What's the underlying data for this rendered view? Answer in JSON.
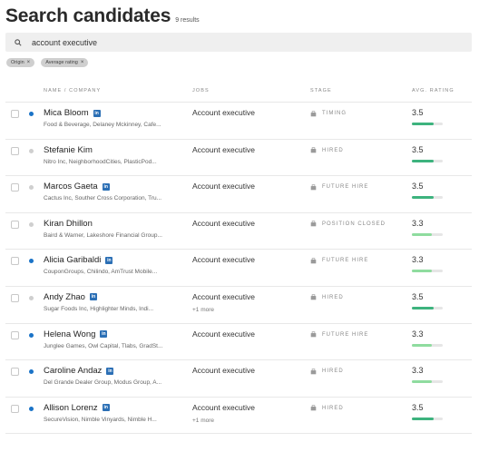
{
  "header": {
    "title": "Search candidates",
    "result_count": "9 results"
  },
  "search": {
    "query": "account executive",
    "icon": "search-icon"
  },
  "filters": [
    {
      "label": "Origin"
    },
    {
      "label": "Average rating"
    }
  ],
  "table": {
    "columns": {
      "name": "NAME / COMPANY",
      "jobs": "JOBS",
      "stage": "STAGE",
      "rating": "AVG. RATING"
    }
  },
  "colors": {
    "active_dot": "#1a73c7",
    "inactive_dot": "#cfcfcf",
    "rating_dark": "#3db37e",
    "rating_light": "#8fdc9f",
    "linkedin": "#2b6fb5"
  },
  "candidates": [
    {
      "name": "Mica Bloom",
      "linkedin": true,
      "active": true,
      "company": "Food & Beverage, Delaney Mckinney, Cafe...",
      "job": "Account executive",
      "more": "",
      "stage": "TIMING",
      "rating": "3.5",
      "rating_value": 3.5
    },
    {
      "name": "Stefanie Kim",
      "linkedin": false,
      "active": false,
      "company": "Nitro Inc, NeighborhoodCities, PlasticPod...",
      "job": "Account executive",
      "more": "",
      "stage": "HIRED",
      "rating": "3.5",
      "rating_value": 3.5
    },
    {
      "name": "Marcos Gaeta",
      "linkedin": true,
      "active": false,
      "company": "Cactus Inc, Souther Cross Corporation, Tru...",
      "job": "Account executive",
      "more": "",
      "stage": "FUTURE HIRE",
      "rating": "3.5",
      "rating_value": 3.5
    },
    {
      "name": "Kiran Dhillon",
      "linkedin": false,
      "active": false,
      "company": "Baird & Warner, Lakeshore Financial Group...",
      "job": "Account executive",
      "more": "",
      "stage": "POSITION CLOSED",
      "rating": "3.3",
      "rating_value": 3.3
    },
    {
      "name": "Alicia Garibaldi",
      "linkedin": true,
      "active": true,
      "company": "CouponGroups, Chilindo, AmTrust Mobile...",
      "job": "Account executive",
      "more": "",
      "stage": "FUTURE HIRE",
      "rating": "3.3",
      "rating_value": 3.3
    },
    {
      "name": "Andy Zhao",
      "linkedin": true,
      "active": false,
      "company": "Sugar Foods Inc, Highlighter Minds, Indi...",
      "job": "Account executive",
      "more": "+1 more",
      "stage": "HIRED",
      "rating": "3.5",
      "rating_value": 3.5
    },
    {
      "name": "Helena Wong",
      "linkedin": true,
      "active": true,
      "company": "Junglee Games, Owl Capital, Tlabs, GradSt...",
      "job": "Account executive",
      "more": "",
      "stage": "FUTURE HIRE",
      "rating": "3.3",
      "rating_value": 3.3
    },
    {
      "name": "Caroline Andaz",
      "linkedin": true,
      "active": true,
      "company": "Del Grande Dealer Group, Modus Group, A...",
      "job": "Account executive",
      "more": "",
      "stage": "HIRED",
      "rating": "3.3",
      "rating_value": 3.3
    },
    {
      "name": "Allison Lorenz",
      "linkedin": true,
      "active": true,
      "company": "SecureVision, Nimble Vinyards, Nimble H...",
      "job": "Account executive",
      "more": "+1 more",
      "stage": "HIRED",
      "rating": "3.5",
      "rating_value": 3.5
    }
  ]
}
